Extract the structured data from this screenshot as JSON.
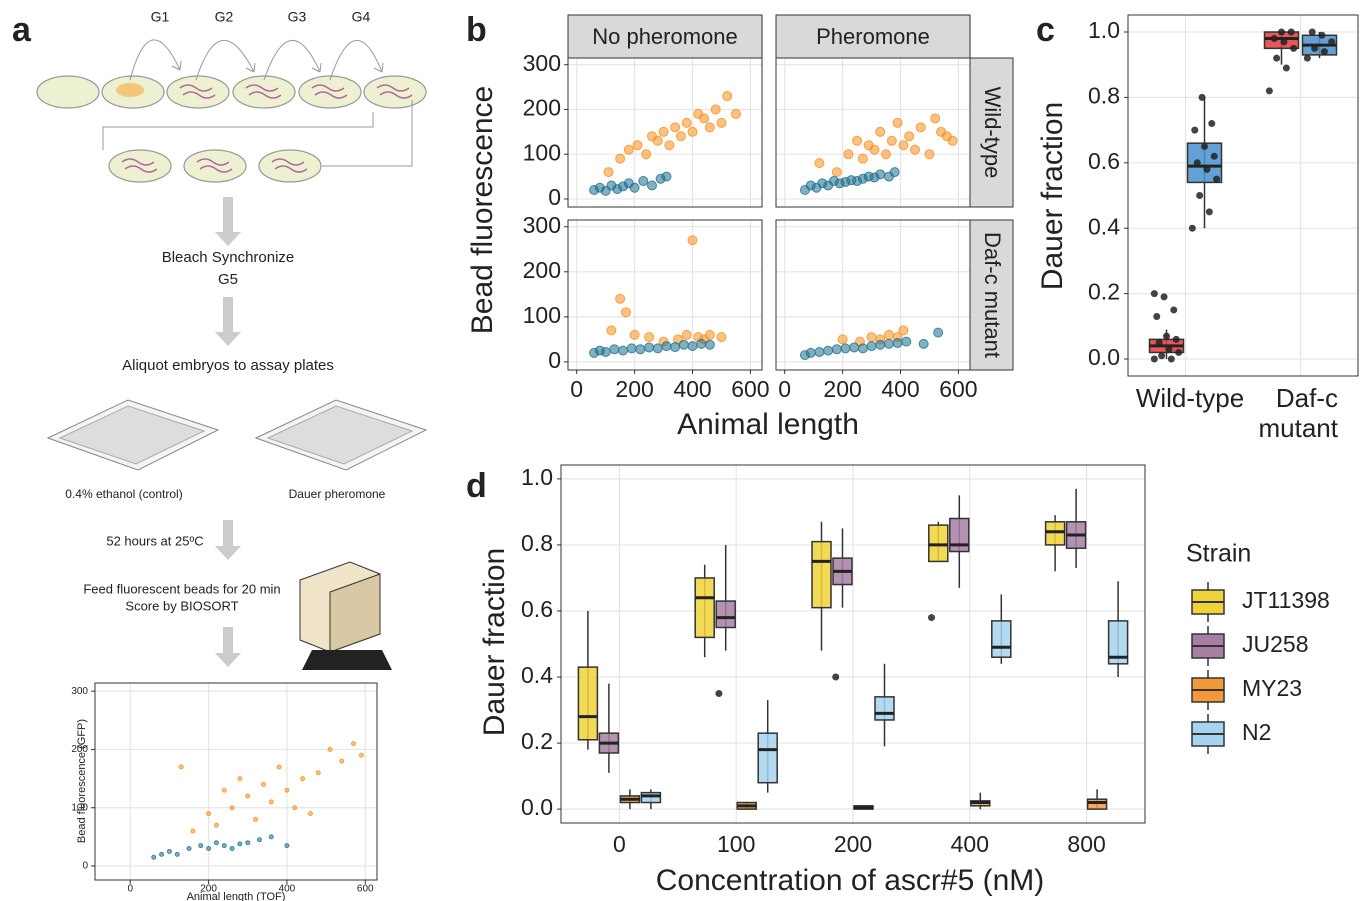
{
  "panel_labels": [
    "a",
    "b",
    "c",
    "d"
  ],
  "panel_a": {
    "generations": [
      "G1",
      "G2",
      "G3",
      "G4"
    ],
    "step_bleach": "Bleach Synchronize",
    "step_g5": "G5",
    "step_aliquot": "Aliquot embryos to assay plates",
    "plate_control": "0.4% ethanol (control)",
    "plate_pheromone": "Dauer pheromone",
    "step_incubate": "52 hours at 25ºC",
    "step_feed": "Feed fluorescent beads for 20 min",
    "step_score": "Score by BIOSORT"
  },
  "chart_data": [
    {
      "type": "scatter",
      "xlabel": "Animal length (TOF)",
      "ylabel": "Bead fluorescence (GFP)",
      "xlim": [
        -90,
        630
      ],
      "ylim": [
        -24,
        314
      ],
      "xticks": [
        0,
        200,
        400,
        600
      ],
      "yticks": [
        0,
        100,
        200,
        300
      ],
      "grid": true,
      "series": [
        {
          "color": "#f9901e",
          "x": [
            130,
            160,
            200,
            220,
            240,
            260,
            280,
            300,
            320,
            340,
            360,
            380,
            400,
            420,
            440,
            460,
            480,
            510,
            540,
            570,
            590
          ],
          "values": [
            170,
            60,
            90,
            70,
            130,
            100,
            150,
            120,
            80,
            140,
            110,
            170,
            130,
            100,
            150,
            90,
            160,
            200,
            180,
            210,
            190
          ]
        },
        {
          "color": "#1d6f8e",
          "x": [
            60,
            80,
            100,
            120,
            150,
            180,
            200,
            220,
            240,
            260,
            280,
            300,
            330,
            360,
            400
          ],
          "values": [
            15,
            20,
            25,
            20,
            30,
            35,
            30,
            40,
            35,
            30,
            38,
            40,
            45,
            50,
            35
          ]
        }
      ]
    },
    {
      "type": "facet-scatter",
      "xlabel": "Animal length",
      "ylabel": "Bead fluorescence",
      "xlim": [
        -30,
        640
      ],
      "ylim": [
        -18,
        315
      ],
      "xticks": [
        0,
        200,
        400,
        600
      ],
      "yticks": [
        0,
        100,
        200,
        300
      ],
      "grid": true,
      "columns": [
        "No pheromone",
        "Pheromone"
      ],
      "rows": [
        "Wild-type",
        "Daf-c mutant"
      ],
      "panels": [
        {
          "series": [
            {
              "color": "#f9901e",
              "x": [
                110,
                150,
                180,
                210,
                240,
                260,
                280,
                300,
                320,
                340,
                360,
                380,
                400,
                420,
                440,
                460,
                480,
                500,
                520,
                550
              ],
              "values": [
                60,
                90,
                110,
                120,
                100,
                140,
                130,
                150,
                120,
                160,
                140,
                170,
                150,
                190,
                180,
                160,
                200,
                170,
                230,
                190
              ]
            },
            {
              "color": "#1d6f8e",
              "x": [
                60,
                80,
                100,
                120,
                140,
                160,
                180,
                200,
                230,
                260,
                290,
                310
              ],
              "values": [
                20,
                25,
                18,
                30,
                22,
                28,
                35,
                25,
                40,
                30,
                45,
                50
              ]
            }
          ]
        },
        {
          "series": [
            {
              "color": "#f9901e",
              "x": [
                120,
                180,
                220,
                250,
                270,
                290,
                310,
                330,
                350,
                370,
                390,
                410,
                430,
                450,
                470,
                500,
                520,
                540,
                560,
                580
              ],
              "values": [
                80,
                60,
                100,
                130,
                90,
                120,
                110,
                150,
                100,
                130,
                170,
                120,
                140,
                110,
                160,
                100,
                180,
                150,
                140,
                130
              ]
            },
            {
              "color": "#1d6f8e",
              "x": [
                70,
                90,
                110,
                130,
                150,
                170,
                190,
                210,
                230,
                250,
                270,
                290,
                310,
                330,
                360,
                380
              ],
              "values": [
                20,
                30,
                25,
                35,
                30,
                40,
                35,
                38,
                42,
                40,
                45,
                50,
                48,
                55,
                50,
                60
              ]
            }
          ]
        },
        {
          "series": [
            {
              "color": "#f9901e",
              "x": [
                120,
                150,
                170,
                200,
                250,
                300,
                350,
                380,
                400,
                420,
                440,
                460,
                500
              ],
              "values": [
                70,
                140,
                110,
                60,
                55,
                45,
                50,
                60,
                270,
                55,
                50,
                60,
                55
              ]
            },
            {
              "color": "#1d6f8e",
              "x": [
                60,
                80,
                100,
                130,
                160,
                190,
                220,
                250,
                280,
                310,
                340,
                370,
                400,
                430,
                460
              ],
              "values": [
                20,
                25,
                22,
                28,
                25,
                30,
                28,
                32,
                30,
                35,
                33,
                38,
                35,
                40,
                38
              ]
            }
          ]
        },
        {
          "series": [
            {
              "color": "#f9901e",
              "x": [
                200,
                260,
                300,
                330,
                360,
                390,
                410
              ],
              "values": [
                50,
                45,
                55,
                50,
                60,
                55,
                70
              ]
            },
            {
              "color": "#1d6f8e",
              "x": [
                70,
                90,
                120,
                150,
                180,
                210,
                240,
                270,
                300,
                330,
                360,
                390,
                420,
                480,
                530
              ],
              "values": [
                15,
                20,
                22,
                25,
                28,
                30,
                32,
                30,
                35,
                38,
                40,
                42,
                45,
                40,
                65
              ]
            }
          ]
        }
      ]
    },
    {
      "type": "boxplot",
      "ylabel": "Dauer fraction",
      "categories": [
        "Wild-type",
        "Daf-c mutant"
      ],
      "ylim": [
        -0.052,
        1.052
      ],
      "yticks": [
        {
          "value": 0,
          "label": "0.0"
        },
        0.2,
        0.4,
        0.6,
        0.8,
        {
          "value": 1,
          "label": "1.0"
        }
      ],
      "grid": true,
      "series": [
        {
          "color": "#e03a3e",
          "boxes": [
            {
              "q1": 0.02,
              "median": 0.04,
              "q3": 0.06,
              "low": 0,
              "high": 0.09
            },
            {
              "q1": 0.95,
              "median": 0.98,
              "q3": 1.0,
              "low": 0.9,
              "high": 1.0
            }
          ],
          "points": [
            [
              0,
              0,
              0.01,
              0.02,
              0.03,
              0.05,
              0.06,
              0.07,
              0.13,
              0.15,
              0.19,
              0.2
            ],
            [
              0.82,
              0.89,
              0.92,
              0.95,
              0.97,
              0.98,
              1.0,
              1.0
            ]
          ]
        },
        {
          "color": "#4a90cc",
          "boxes": [
            {
              "q1": 0.54,
              "median": 0.59,
              "q3": 0.66,
              "low": 0.4,
              "high": 0.8
            },
            {
              "q1": 0.93,
              "median": 0.96,
              "q3": 0.99,
              "low": 0.92,
              "high": 1.0
            }
          ],
          "points": [
            [
              0.4,
              0.45,
              0.5,
              0.55,
              0.58,
              0.6,
              0.62,
              0.65,
              0.7,
              0.72,
              0.8
            ],
            [
              0.92,
              0.94,
              0.95,
              0.97,
              0.99,
              1.0
            ]
          ]
        }
      ]
    },
    {
      "type": "boxplot",
      "xlabel": "Concentration of ascr#5 (nM)",
      "ylabel": "Dauer fraction",
      "legend_title": "Strain",
      "categories": [
        "0",
        "100",
        "200",
        "400",
        "800"
      ],
      "ylim": [
        -0.042,
        1.042
      ],
      "yticks": [
        {
          "value": 0,
          "label": "0.0"
        },
        0.2,
        0.4,
        0.6,
        0.8,
        {
          "value": 1,
          "label": "1.0"
        }
      ],
      "grid": true,
      "series": [
        {
          "name": "JT11398",
          "color": "#f0d33a",
          "boxes": [
            {
              "q1": 0.21,
              "median": 0.28,
              "q3": 0.43,
              "low": 0.18,
              "high": 0.6
            },
            {
              "q1": 0.52,
              "median": 0.64,
              "q3": 0.7,
              "low": 0.46,
              "high": 0.74
            },
            {
              "q1": 0.61,
              "median": 0.75,
              "q3": 0.81,
              "low": 0.48,
              "high": 0.87
            },
            {
              "q1": 0.75,
              "median": 0.8,
              "q3": 0.86,
              "low": 0.75,
              "high": 0.87
            },
            {
              "q1": 0.8,
              "median": 0.84,
              "q3": 0.87,
              "low": 0.72,
              "high": 0.89
            }
          ],
          "outliers": [
            [],
            [],
            [],
            [
              0.58
            ],
            []
          ]
        },
        {
          "name": "JU258",
          "color": "#a77fa3",
          "boxes": [
            {
              "q1": 0.17,
              "median": 0.2,
              "q3": 0.23,
              "low": 0.11,
              "high": 0.38
            },
            {
              "q1": 0.55,
              "median": 0.58,
              "q3": 0.63,
              "low": 0.48,
              "high": 0.8
            },
            {
              "q1": 0.68,
              "median": 0.72,
              "q3": 0.76,
              "low": 0.61,
              "high": 0.85
            },
            {
              "q1": 0.78,
              "median": 0.8,
              "q3": 0.88,
              "low": 0.67,
              "high": 0.95
            },
            {
              "q1": 0.79,
              "median": 0.83,
              "q3": 0.87,
              "low": 0.73,
              "high": 0.97
            }
          ],
          "outliers": [
            [],
            [
              0.35
            ],
            [
              0.4
            ],
            [],
            []
          ]
        },
        {
          "name": "MY23",
          "color": "#f29a3b",
          "boxes": [
            {
              "q1": 0.02,
              "median": 0.03,
              "q3": 0.04,
              "low": 0,
              "high": 0.06
            },
            {
              "q1": 0,
              "median": 0.01,
              "q3": 0.02,
              "low": 0,
              "high": 0.02
            },
            {
              "q1": 0,
              "median": 0.005,
              "q3": 0.01,
              "low": 0,
              "high": 0.01
            },
            {
              "q1": 0.01,
              "median": 0.02,
              "q3": 0.025,
              "low": 0,
              "high": 0.05
            },
            {
              "q1": 0,
              "median": 0.02,
              "q3": 0.03,
              "low": 0,
              "high": 0.06
            }
          ],
          "outliers": [
            [],
            [],
            [],
            [],
            []
          ]
        },
        {
          "name": "N2",
          "color": "#a6d3ef",
          "boxes": [
            {
              "q1": 0.02,
              "median": 0.04,
              "q3": 0.05,
              "low": 0,
              "high": 0.06
            },
            {
              "q1": 0.08,
              "median": 0.18,
              "q3": 0.23,
              "low": 0.05,
              "high": 0.33
            },
            {
              "q1": 0.27,
              "median": 0.29,
              "q3": 0.34,
              "low": 0.19,
              "high": 0.44
            },
            {
              "q1": 0.46,
              "median": 0.49,
              "q3": 0.57,
              "low": 0.44,
              "high": 0.65
            },
            {
              "q1": 0.44,
              "median": 0.46,
              "q3": 0.57,
              "low": 0.4,
              "high": 0.69
            }
          ],
          "outliers": [
            [],
            [],
            [],
            [],
            []
          ]
        }
      ]
    }
  ]
}
